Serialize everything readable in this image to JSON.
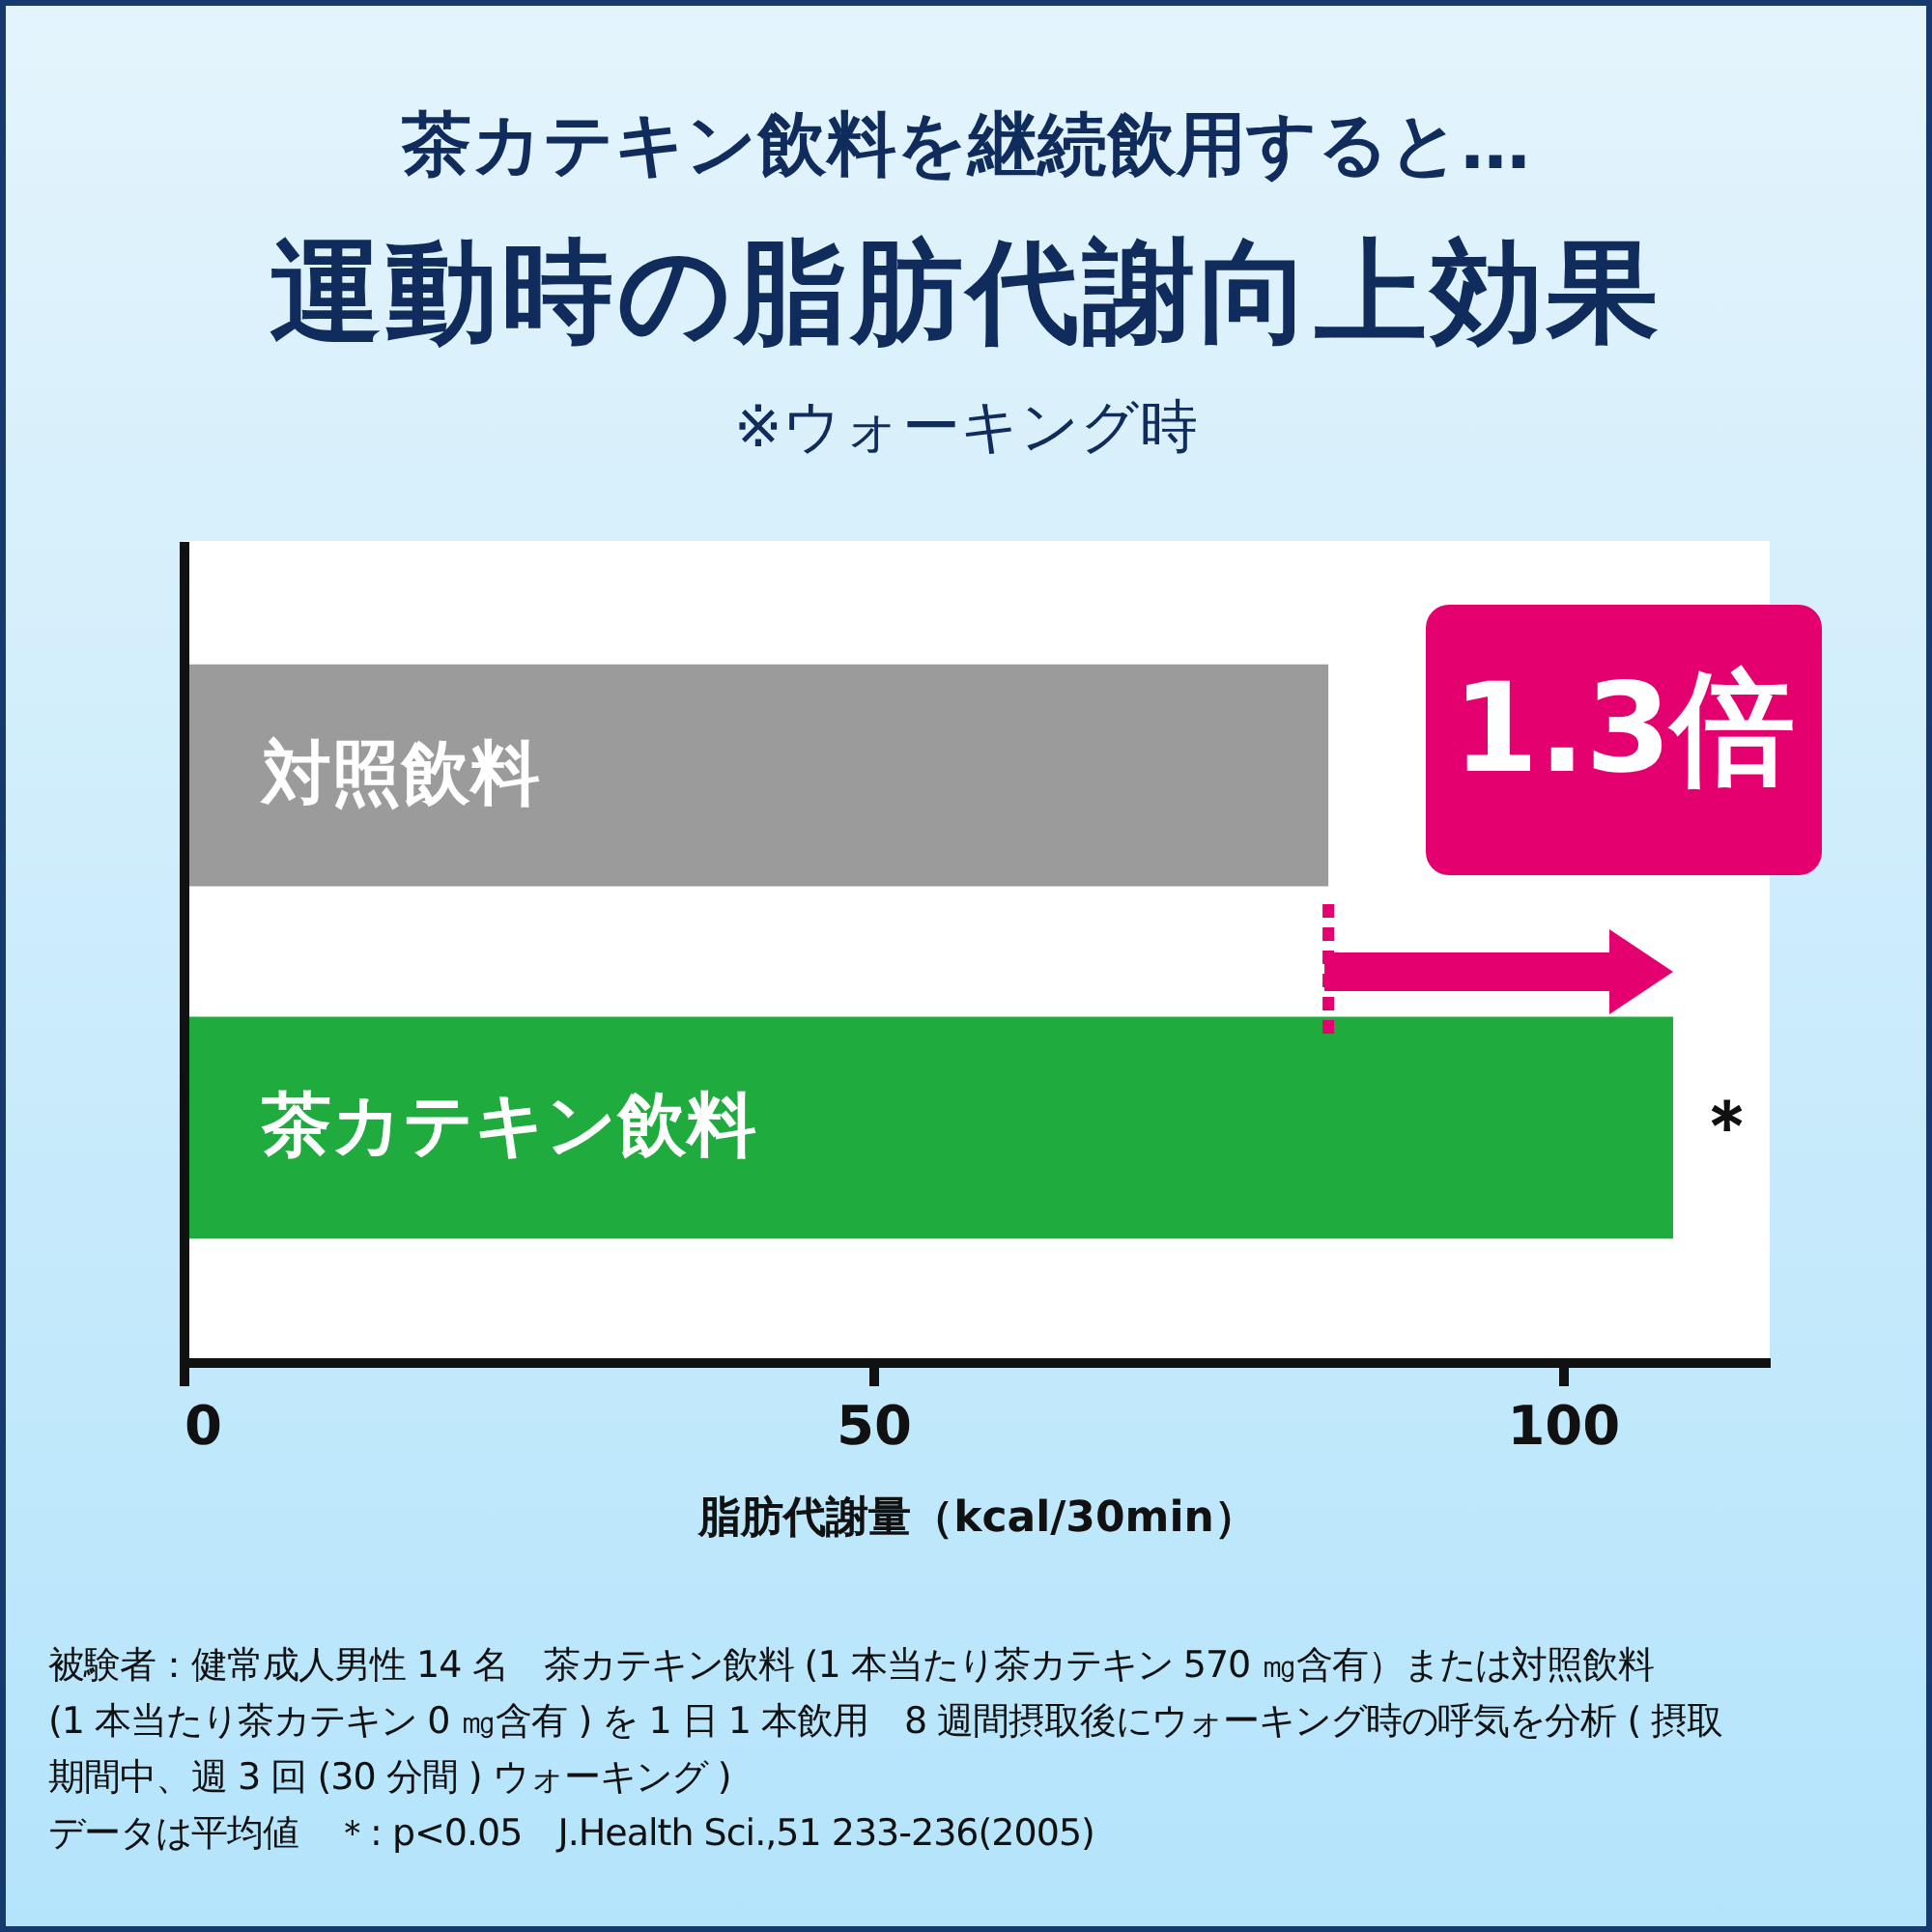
{
  "chart_data": {
    "type": "bar",
    "orientation": "horizontal",
    "title": "運動時の脂肪代謝向上効果",
    "subtitle": "茶カテキン飲料を継続飲用すると…",
    "xlabel": "脂肪代謝量（kcal/30min）",
    "categories": [
      "対照飲料",
      "茶カテキン飲料"
    ],
    "values": [
      83,
      108
    ],
    "colors": [
      "#9b9b9b",
      "#1fab3e"
    ],
    "xlim": [
      0,
      115
    ],
    "xticks": [
      0,
      50,
      100
    ],
    "grid": false,
    "annotations": [
      "※ウォーキング時",
      "1.3倍",
      "被験者：健常成人男性 14 名　茶カテキン飲料 (1 本当たり茶カテキン 570 ㎎含有）または対照飲料",
      "(1 本当たり茶カテキン 0 ㎎含有 ) を 1 日 1 本飲用　8 週間摂取後にウォーキング時の呼気を分析 ( 摂取",
      "期間中、週 3 回 (30 分間 ) ウォーキング )",
      "データは平均値　＊: p<0.05　J.Health Sci.,51 233-236(2005)",
      {
        "text": "＊",
        "x": 108,
        "y": "茶カテキン飲料"
      }
    ]
  }
}
